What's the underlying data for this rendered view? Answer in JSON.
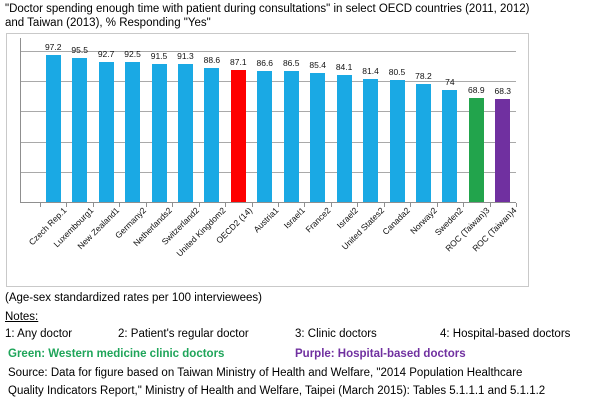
{
  "page": {
    "title_lines": [
      "\"Doctor spending enough time with patient during consultations\" in select OECD countries (2011, 2012)",
      "and Taiwan (2013), % Responding \"Yes\""
    ]
  },
  "chart_data": {
    "type": "bar",
    "title": "\"Doctor spending enough time with patient during consultations\" in select OECD countries (2011, 2012) and Taiwan (2013), % Responding \"Yes\"",
    "categories": [
      "Czech Rep.1",
      "Luxembourg1",
      "New Zealand1",
      "Germany2",
      "Netherlands2",
      "Switzerland2",
      "United Kingdom2",
      "OECD2 (14)",
      "Austria1",
      "Israel1",
      "France2",
      "Israel2",
      "United States2",
      "Canada2",
      "Norway2",
      "Sweden2",
      "ROC (Taiwan)3",
      "ROC (Taiwan)4"
    ],
    "values": [
      97.2,
      95.5,
      92.7,
      92.5,
      91.5,
      91.3,
      88.6,
      87.1,
      86.6,
      86.5,
      85.4,
      84.1,
      81.4,
      80.5,
      78.2,
      74,
      68.9,
      68.3
    ],
    "bar_colors": [
      "#1aa9e4",
      "#1aa9e4",
      "#1aa9e4",
      "#1aa9e4",
      "#1aa9e4",
      "#1aa9e4",
      "#1aa9e4",
      "#fe0000",
      "#1aa9e4",
      "#1aa9e4",
      "#1aa9e4",
      "#1aa9e4",
      "#1aa9e4",
      "#1aa9e4",
      "#1aa9e4",
      "#1aa9e4",
      "#22a44c",
      "#7030a0"
    ],
    "xlabel": "",
    "ylabel": "",
    "ylim": [
      0,
      108
    ],
    "gridlines": [
      20,
      40,
      60,
      80,
      100
    ],
    "grid": true,
    "legend": "none",
    "value_labels": true,
    "highlight": {
      "red_bar": "OECD2 (14)",
      "green_bar": "ROC (Taiwan)3",
      "purple_bar": "ROC (Taiwan)4"
    }
  },
  "footer": {
    "rates_note": "(Age-sex standardized rates per 100 interviewees)",
    "notes_heading": "Notes:",
    "notes": [
      "1: Any doctor",
      "2: Patient's regular doctor",
      "3: Clinic doctors",
      "4: Hospital-based doctors"
    ],
    "green_note": "Green: Western medicine clinic doctors",
    "purple_note": "Purple: Hospital-based doctors",
    "source_lines": [
      "Source: Data for figure based on Taiwan Ministry of Health and Welfare, \"2014 Population Healthcare",
      "Quality Indicators Report,\" Ministry of Health and Welfare, Taipei (March 2015): Tables 5.1.1.1 and 5.1.1.2"
    ],
    "colors": {
      "green": "#1fa55a",
      "purple": "#7030a0"
    }
  }
}
